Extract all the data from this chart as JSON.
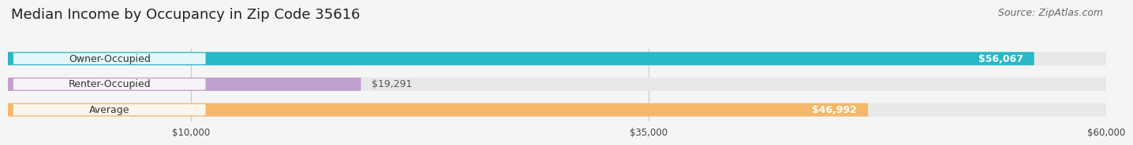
{
  "title": "Median Income by Occupancy in Zip Code 35616",
  "source": "Source: ZipAtlas.com",
  "categories": [
    "Owner-Occupied",
    "Renter-Occupied",
    "Average"
  ],
  "values": [
    56067,
    19291,
    46992
  ],
  "bar_colors": [
    "#29b8c8",
    "#c0a0cc",
    "#f5b86a"
  ],
  "bar_bg_color": "#e8e8e8",
  "xlim_min": 0,
  "xlim_max": 60000,
  "xticks": [
    10000,
    35000,
    60000
  ],
  "xtick_labels": [
    "$10,000",
    "$35,000",
    "$60,000"
  ],
  "value_labels": [
    "$56,067",
    "$19,291",
    "$46,992"
  ],
  "title_fontsize": 13,
  "source_fontsize": 9,
  "cat_label_fontsize": 9,
  "value_label_fontsize": 9,
  "background_color": "#f5f5f5"
}
